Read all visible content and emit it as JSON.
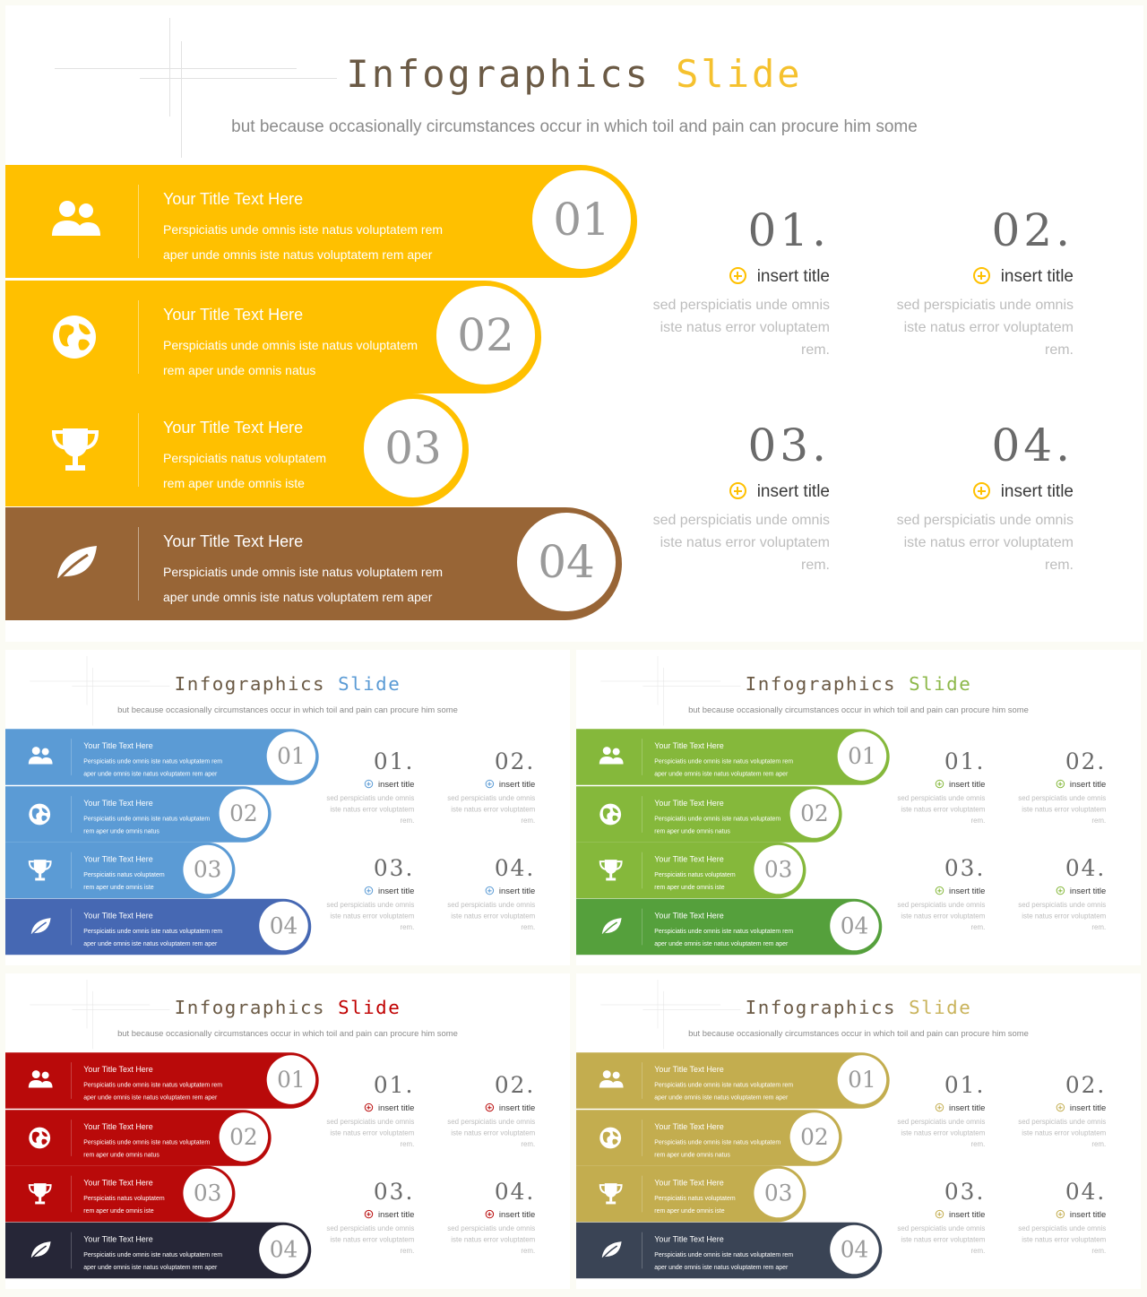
{
  "slides": [
    {
      "id": "yellow-brown",
      "title": {
        "word1": "Infographics",
        "word2": "Slide"
      },
      "subtitle": "but because occasionally circumstances occur in which toil and pain can procure him some",
      "colors": {
        "title_accent": "#f5c12e",
        "bands": [
          "#ffc000",
          "#ffc000",
          "#ffc000",
          "#986536"
        ],
        "bullet": "#ffc000",
        "background": "#ffffff"
      },
      "bands": [
        {
          "icon": "people-icon",
          "title": "Your Title Text Here",
          "lines": [
            "Perspiciatis unde omnis iste natus voluptatem rem",
            "aper unde omnis iste natus voluptatem rem aper"
          ],
          "number": "01"
        },
        {
          "icon": "globe-icon",
          "title": "Your Title Text Here",
          "lines": [
            "Perspiciatis unde omnis iste natus voluptatem",
            "rem aper unde omnis natus"
          ],
          "number": "02"
        },
        {
          "icon": "trophy-icon",
          "title": "Your Title Text Here",
          "lines": [
            "Perspiciatis natus voluptatem",
            "rem aper unde omnis iste"
          ],
          "number": "03"
        },
        {
          "icon": "leaf-icon",
          "title": "Your Title Text Here",
          "lines": [
            "Perspiciatis unde omnis iste natus voluptatem rem",
            "aper unde omnis iste natus voluptatem rem aper"
          ],
          "number": "04"
        }
      ],
      "items": [
        {
          "number": "01.",
          "title": "insert title",
          "lines": [
            "sed perspiciatis unde omnis",
            "iste natus error voluptatem",
            "rem."
          ]
        },
        {
          "number": "02.",
          "title": "insert title",
          "lines": [
            "sed perspiciatis unde omnis",
            "iste natus error voluptatem",
            "rem."
          ]
        },
        {
          "number": "03.",
          "title": "insert title",
          "lines": [
            "sed perspiciatis unde omnis",
            "iste natus error voluptatem",
            "rem."
          ]
        },
        {
          "number": "04.",
          "title": "insert title",
          "lines": [
            "sed perspiciatis unde omnis",
            "iste natus error voluptatem",
            "rem."
          ]
        }
      ]
    },
    {
      "id": "blue",
      "title": {
        "word1": "Infographics",
        "word2": "Slide"
      },
      "subtitle": "but because occasionally circumstances occur in which toil and pain can procure him some",
      "colors": {
        "title_accent": "#5b9bd5",
        "bands": [
          "#5b9bd5",
          "#5b9bd5",
          "#5b9bd5",
          "#4668b3"
        ],
        "bullet": "#5b9bd5",
        "background": "#ffffff"
      },
      "bands": [
        {
          "icon": "people-icon",
          "title": "Your Title Text Here",
          "lines": [
            "Perspiciatis unde omnis iste natus voluptatem rem",
            "aper unde omnis iste natus voluptatem rem aper"
          ],
          "number": "01"
        },
        {
          "icon": "globe-icon",
          "title": "Your Title Text Here",
          "lines": [
            "Perspiciatis unde omnis iste natus voluptatem",
            "rem aper unde omnis natus"
          ],
          "number": "02"
        },
        {
          "icon": "trophy-icon",
          "title": "Your Title Text Here",
          "lines": [
            "Perspiciatis natus voluptatem",
            "rem aper unde omnis iste"
          ],
          "number": "03"
        },
        {
          "icon": "leaf-icon",
          "title": "Your Title Text Here",
          "lines": [
            "Perspiciatis unde omnis iste natus voluptatem rem",
            "aper unde omnis iste natus voluptatem rem aper"
          ],
          "number": "04"
        }
      ],
      "items": [
        {
          "number": "01.",
          "title": "insert title",
          "lines": [
            "sed perspiciatis unde omnis",
            "iste natus error voluptatem",
            "rem."
          ]
        },
        {
          "number": "02.",
          "title": "insert title",
          "lines": [
            "sed perspiciatis unde omnis",
            "iste natus error voluptatem",
            "rem."
          ]
        },
        {
          "number": "03.",
          "title": "insert title",
          "lines": [
            "sed perspiciatis unde omnis",
            "iste natus error voluptatem",
            "rem."
          ]
        },
        {
          "number": "04.",
          "title": "insert title",
          "lines": [
            "sed perspiciatis unde omnis",
            "iste natus error voluptatem",
            "rem."
          ]
        }
      ]
    },
    {
      "id": "green",
      "title": {
        "word1": "Infographics",
        "word2": "Slide"
      },
      "subtitle": "but because occasionally circumstances occur in which toil and pain can procure him some",
      "colors": {
        "title_accent": "#8db84a",
        "bands": [
          "#85b83b",
          "#85b83b",
          "#85b83b",
          "#55a03c"
        ],
        "bullet": "#85b83b",
        "background": "#ffffff"
      },
      "bands": [
        {
          "icon": "people-icon",
          "title": "Your Title Text Here",
          "lines": [
            "Perspiciatis unde omnis iste natus voluptatem rem",
            "aper unde omnis iste natus voluptatem rem aper"
          ],
          "number": "01"
        },
        {
          "icon": "globe-icon",
          "title": "Your Title Text Here",
          "lines": [
            "Perspiciatis unde omnis iste natus voluptatem",
            "rem aper unde omnis natus"
          ],
          "number": "02"
        },
        {
          "icon": "trophy-icon",
          "title": "Your Title Text Here",
          "lines": [
            "Perspiciatis natus voluptatem",
            "rem aper unde omnis iste"
          ],
          "number": "03"
        },
        {
          "icon": "leaf-icon",
          "title": "Your Title Text Here",
          "lines": [
            "Perspiciatis unde omnis iste natus voluptatem rem",
            "aper unde omnis iste natus voluptatem rem aper"
          ],
          "number": "04"
        }
      ],
      "items": [
        {
          "number": "01.",
          "title": "insert title",
          "lines": [
            "sed perspiciatis unde omnis",
            "iste natus error voluptatem",
            "rem."
          ]
        },
        {
          "number": "02.",
          "title": "insert title",
          "lines": [
            "sed perspiciatis unde omnis",
            "iste natus error voluptatem",
            "rem."
          ]
        },
        {
          "number": "03.",
          "title": "insert title",
          "lines": [
            "sed perspiciatis unde omnis",
            "iste natus error voluptatem",
            "rem."
          ]
        },
        {
          "number": "04.",
          "title": "insert title",
          "lines": [
            "sed perspiciatis unde omnis",
            "iste natus error voluptatem",
            "rem."
          ]
        }
      ]
    },
    {
      "id": "red",
      "title": {
        "word1": "Infographics",
        "word2": "Slide"
      },
      "subtitle": "but because occasionally circumstances occur in which toil and pain can procure him some",
      "colors": {
        "title_accent": "#c00000",
        "bands": [
          "#b90a0a",
          "#b90a0a",
          "#b90a0a",
          "#262637"
        ],
        "bullet": "#b90a0a",
        "background": "#ffffff"
      },
      "bands": [
        {
          "icon": "people-icon",
          "title": "Your Title Text Here",
          "lines": [
            "Perspiciatis unde omnis iste natus voluptatem rem",
            "aper unde omnis iste natus voluptatem rem aper"
          ],
          "number": "01"
        },
        {
          "icon": "globe-icon",
          "title": "Your Title Text Here",
          "lines": [
            "Perspiciatis unde omnis iste natus voluptatem",
            "rem aper unde omnis natus"
          ],
          "number": "02"
        },
        {
          "icon": "trophy-icon",
          "title": "Your Title Text Here",
          "lines": [
            "Perspiciatis natus voluptatem",
            "rem aper unde omnis iste"
          ],
          "number": "03"
        },
        {
          "icon": "leaf-icon",
          "title": "Your Title Text Here",
          "lines": [
            "Perspiciatis unde omnis iste natus voluptatem rem",
            "aper unde omnis iste natus voluptatem rem aper"
          ],
          "number": "04"
        }
      ],
      "items": [
        {
          "number": "01.",
          "title": "insert title",
          "lines": [
            "sed perspiciatis unde omnis",
            "iste natus error voluptatem",
            "rem."
          ]
        },
        {
          "number": "02.",
          "title": "insert title",
          "lines": [
            "sed perspiciatis unde omnis",
            "iste natus error voluptatem",
            "rem."
          ]
        },
        {
          "number": "03.",
          "title": "insert title",
          "lines": [
            "sed perspiciatis unde omnis",
            "iste natus error voluptatem",
            "rem."
          ]
        },
        {
          "number": "04.",
          "title": "insert title",
          "lines": [
            "sed perspiciatis unde omnis",
            "iste natus error voluptatem",
            "rem."
          ]
        }
      ]
    },
    {
      "id": "olive",
      "title": {
        "word1": "Infographics",
        "word2": "Slide"
      },
      "subtitle": "but because occasionally circumstances occur in which toil and pain can procure him some",
      "colors": {
        "title_accent": "#c9b35b",
        "bands": [
          "#c3ad4f",
          "#c3ad4f",
          "#c3ad4f",
          "#3a4455"
        ],
        "bullet": "#c3ad4f",
        "background": "#ffffff"
      },
      "bands": [
        {
          "icon": "people-icon",
          "title": "Your Title Text Here",
          "lines": [
            "Perspiciatis unde omnis iste natus voluptatem rem",
            "aper unde omnis iste natus voluptatem rem aper"
          ],
          "number": "01"
        },
        {
          "icon": "globe-icon",
          "title": "Your Title Text Here",
          "lines": [
            "Perspiciatis unde omnis iste natus voluptatem",
            "rem aper unde omnis natus"
          ],
          "number": "02"
        },
        {
          "icon": "trophy-icon",
          "title": "Your Title Text Here",
          "lines": [
            "Perspiciatis natus voluptatem",
            "rem aper unde omnis iste"
          ],
          "number": "03"
        },
        {
          "icon": "leaf-icon",
          "title": "Your Title Text Here",
          "lines": [
            "Perspiciatis unde omnis iste natus voluptatem rem",
            "aper unde omnis iste natus voluptatem rem aper"
          ],
          "number": "04"
        }
      ],
      "items": [
        {
          "number": "01.",
          "title": "insert title",
          "lines": [
            "sed perspiciatis unde omnis",
            "iste natus error voluptatem",
            "rem."
          ]
        },
        {
          "number": "02.",
          "title": "insert title",
          "lines": [
            "sed perspiciatis unde omnis",
            "iste natus error voluptatem",
            "rem."
          ]
        },
        {
          "number": "03.",
          "title": "insert title",
          "lines": [
            "sed perspiciatis unde omnis",
            "iste natus error voluptatem",
            "rem."
          ]
        },
        {
          "number": "04.",
          "title": "insert title",
          "lines": [
            "sed perspiciatis unde omnis",
            "iste natus error voluptatem",
            "rem."
          ]
        }
      ]
    }
  ]
}
